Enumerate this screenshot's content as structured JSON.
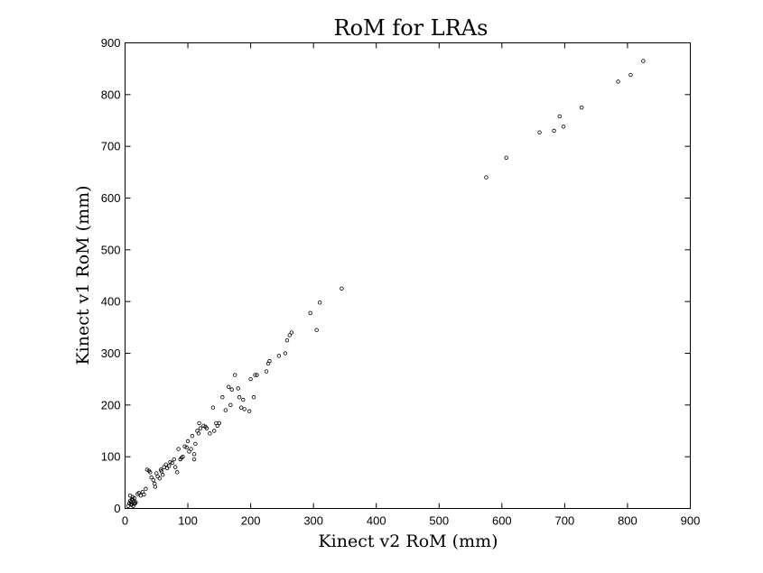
{
  "chart_data": {
    "type": "scatter",
    "title": "RoM for LRAs",
    "xlabel": "Kinect v2 RoM (mm)",
    "ylabel": "Kinect v1 RoM (mm)",
    "xlim": [
      0,
      900
    ],
    "ylim": [
      0,
      900
    ],
    "xticks": [
      0,
      100,
      200,
      300,
      400,
      500,
      600,
      700,
      800,
      900
    ],
    "yticks": [
      0,
      100,
      200,
      300,
      400,
      500,
      600,
      700,
      800,
      900
    ],
    "grid": false,
    "legend": "none",
    "marker": "open-circle",
    "color": "#000000",
    "series": [
      {
        "x": [
          5,
          7,
          8,
          9,
          10,
          11,
          12,
          13,
          14,
          15,
          16,
          8,
          10,
          12,
          15,
          17,
          20,
          22,
          25,
          28,
          30,
          33,
          35,
          38,
          40,
          42,
          45,
          47,
          48,
          50,
          52,
          55,
          57,
          58,
          60,
          62,
          65,
          67,
          70,
          72,
          75,
          78,
          80,
          83,
          85,
          88,
          90,
          92,
          95,
          98,
          100,
          102,
          105,
          107,
          110,
          110,
          112,
          115,
          117,
          118,
          120,
          125,
          128,
          130,
          135,
          140,
          142,
          145,
          147,
          150,
          155,
          160,
          165,
          168,
          170,
          175,
          180,
          182,
          185,
          188,
          190,
          198,
          200,
          205,
          207,
          210,
          225,
          228,
          230,
          245,
          255,
          258,
          262,
          265,
          295,
          305,
          310,
          345,
          575,
          607,
          660,
          683,
          692,
          698,
          727,
          785,
          805,
          825
        ],
        "y": [
          5,
          10,
          15,
          12,
          8,
          18,
          22,
          5,
          14,
          20,
          10,
          25,
          7,
          17,
          9,
          12,
          28,
          30,
          25,
          32,
          27,
          38,
          75,
          73,
          70,
          60,
          55,
          48,
          42,
          68,
          62,
          58,
          75,
          72,
          65,
          80,
          85,
          78,
          82,
          90,
          88,
          95,
          80,
          70,
          115,
          95,
          98,
          100,
          120,
          118,
          130,
          110,
          115,
          140,
          105,
          95,
          125,
          150,
          145,
          165,
          155,
          160,
          158,
          155,
          145,
          195,
          150,
          165,
          160,
          165,
          215,
          190,
          235,
          200,
          230,
          258,
          232,
          215,
          195,
          210,
          192,
          188,
          250,
          215,
          258,
          258,
          265,
          280,
          285,
          295,
          300,
          325,
          335,
          340,
          378,
          345,
          398,
          425,
          640,
          678,
          727,
          730,
          758,
          738,
          775,
          825,
          838,
          865
        ]
      }
    ]
  }
}
